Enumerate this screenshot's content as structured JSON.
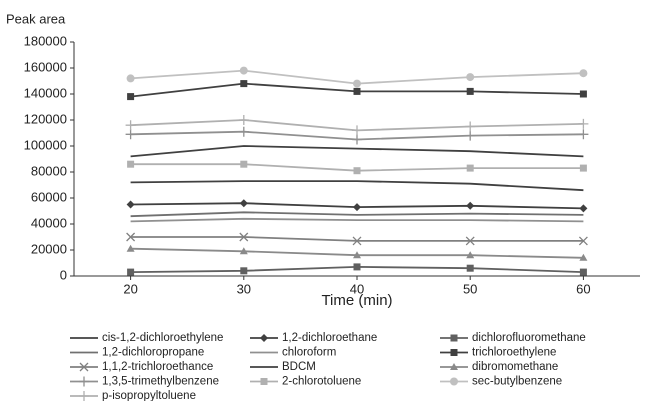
{
  "chart_data": {
    "type": "line",
    "y_label": "Peak area",
    "x_label": "Time (min)",
    "x": [
      20,
      30,
      40,
      50,
      60
    ],
    "xlim": [
      15,
      65
    ],
    "xticks": [
      20,
      30,
      40,
      50,
      60
    ],
    "ylim": [
      0,
      180000
    ],
    "yticks": [
      0,
      20000,
      40000,
      60000,
      80000,
      100000,
      120000,
      140000,
      160000,
      180000
    ],
    "series": [
      {
        "name": "cis-1,2-dichloroethylene",
        "color": "#404040",
        "marker": "none",
        "values": [
          72000,
          73000,
          73000,
          71000,
          66000
        ]
      },
      {
        "name": "1,2-dichloroethane",
        "color": "#404040",
        "marker": "diamond",
        "values": [
          55000,
          56000,
          53000,
          54000,
          52000
        ]
      },
      {
        "name": "dichlorofluoromethane",
        "color": "#606060",
        "marker": "square",
        "values": [
          3000,
          4000,
          7000,
          6000,
          3000
        ]
      },
      {
        "name": "1,2-dichloropropane",
        "color": "#707070",
        "marker": "none",
        "values": [
          46000,
          49000,
          47000,
          48000,
          47000
        ]
      },
      {
        "name": "chloroform",
        "color": "#909090",
        "marker": "none",
        "values": [
          42000,
          44000,
          43000,
          43000,
          42000
        ]
      },
      {
        "name": "trichloroethylene",
        "color": "#404040",
        "marker": "square",
        "values": [
          138000,
          148000,
          142000,
          142000,
          140000
        ]
      },
      {
        "name": "1,1,2-trichloroethance",
        "color": "#808080",
        "marker": "x",
        "values": [
          30000,
          30000,
          27000,
          27000,
          27000
        ]
      },
      {
        "name": "BDCM",
        "color": "#404040",
        "marker": "none",
        "values": [
          92000,
          100000,
          98000,
          96000,
          92000
        ]
      },
      {
        "name": "dibromomethane",
        "color": "#8a8a8a",
        "marker": "triangle",
        "values": [
          21000,
          19000,
          16000,
          16000,
          14000
        ]
      },
      {
        "name": "1,3,5-trimethylbenzene",
        "color": "#909090",
        "marker": "plus",
        "values": [
          109000,
          111000,
          105000,
          108000,
          109000
        ]
      },
      {
        "name": "2-chlorotoluene",
        "color": "#b0b0b0",
        "marker": "square",
        "values": [
          86000,
          86000,
          81000,
          83000,
          83000
        ]
      },
      {
        "name": "sec-butylbenzene",
        "color": "#c0c0c0",
        "marker": "circle",
        "values": [
          152000,
          158000,
          148000,
          153000,
          156000
        ]
      },
      {
        "name": "p-isopropyltoluene",
        "color": "#b0b0b0",
        "marker": "plus",
        "values": [
          116000,
          120000,
          112000,
          115000,
          117000
        ]
      }
    ]
  }
}
